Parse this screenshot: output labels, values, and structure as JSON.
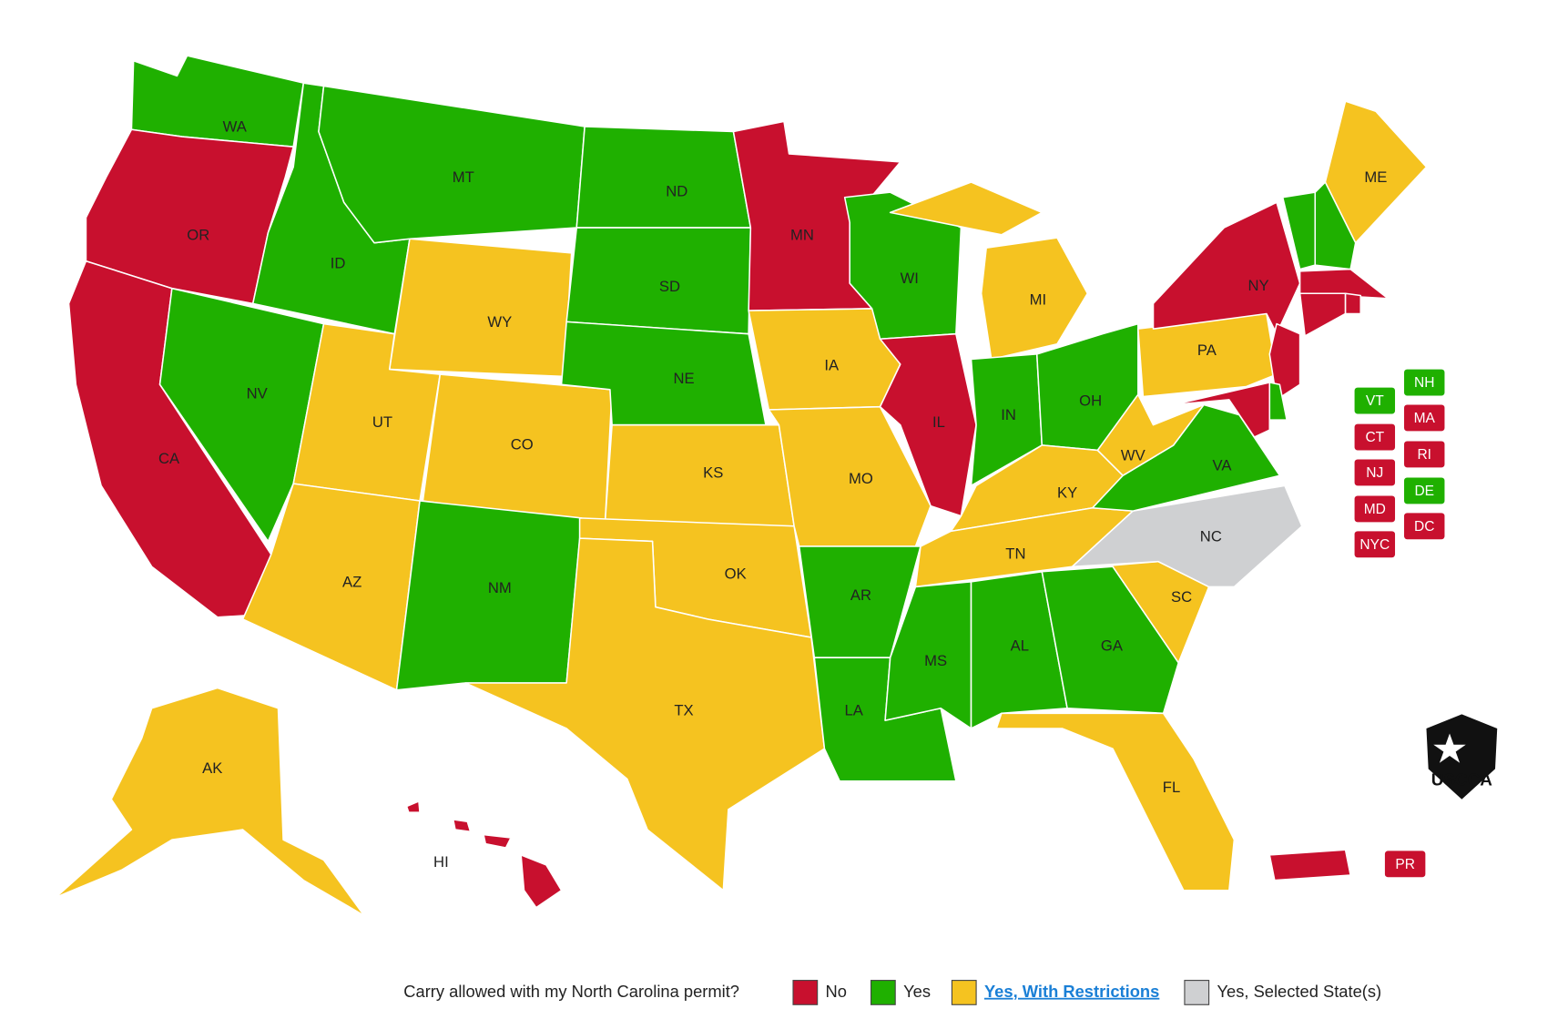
{
  "map": {
    "states": [
      {
        "abbr": "WA",
        "status": "Yes"
      },
      {
        "abbr": "OR",
        "status": "No"
      },
      {
        "abbr": "CA",
        "status": "No"
      },
      {
        "abbr": "ID",
        "status": "Yes"
      },
      {
        "abbr": "NV",
        "status": "Yes"
      },
      {
        "abbr": "MT",
        "status": "Yes"
      },
      {
        "abbr": "WY",
        "status": "Yes, With Restrictions"
      },
      {
        "abbr": "UT",
        "status": "Yes, With Restrictions"
      },
      {
        "abbr": "CO",
        "status": "Yes, With Restrictions"
      },
      {
        "abbr": "AZ",
        "status": "Yes, With Restrictions"
      },
      {
        "abbr": "NM",
        "status": "Yes"
      },
      {
        "abbr": "ND",
        "status": "Yes"
      },
      {
        "abbr": "SD",
        "status": "Yes"
      },
      {
        "abbr": "NE",
        "status": "Yes"
      },
      {
        "abbr": "KS",
        "status": "Yes, With Restrictions"
      },
      {
        "abbr": "OK",
        "status": "Yes, With Restrictions"
      },
      {
        "abbr": "TX",
        "status": "Yes, With Restrictions"
      },
      {
        "abbr": "MN",
        "status": "No"
      },
      {
        "abbr": "IA",
        "status": "Yes, With Restrictions"
      },
      {
        "abbr": "MO",
        "status": "Yes, With Restrictions"
      },
      {
        "abbr": "AR",
        "status": "Yes"
      },
      {
        "abbr": "LA",
        "status": "Yes"
      },
      {
        "abbr": "WI",
        "status": "Yes"
      },
      {
        "abbr": "IL",
        "status": "No"
      },
      {
        "abbr": "MI",
        "status": "Yes, With Restrictions"
      },
      {
        "abbr": "IN",
        "status": "Yes"
      },
      {
        "abbr": "OH",
        "status": "Yes"
      },
      {
        "abbr": "KY",
        "status": "Yes, With Restrictions"
      },
      {
        "abbr": "TN",
        "status": "Yes, With Restrictions"
      },
      {
        "abbr": "MS",
        "status": "Yes"
      },
      {
        "abbr": "AL",
        "status": "Yes"
      },
      {
        "abbr": "GA",
        "status": "Yes"
      },
      {
        "abbr": "FL",
        "status": "Yes, With Restrictions"
      },
      {
        "abbr": "SC",
        "status": "Yes, With Restrictions"
      },
      {
        "abbr": "NC",
        "status": "Yes, Selected State(s)"
      },
      {
        "abbr": "VA",
        "status": "Yes"
      },
      {
        "abbr": "WV",
        "status": "Yes, With Restrictions"
      },
      {
        "abbr": "PA",
        "status": "Yes, With Restrictions"
      },
      {
        "abbr": "NY",
        "status": "No"
      },
      {
        "abbr": "ME",
        "status": "Yes, With Restrictions"
      },
      {
        "abbr": "AK",
        "status": "Yes, With Restrictions"
      },
      {
        "abbr": "HI",
        "status": "No"
      }
    ],
    "badges": [
      {
        "abbr": "VT",
        "status": "Yes"
      },
      {
        "abbr": "NH",
        "status": "Yes"
      },
      {
        "abbr": "MA",
        "status": "No"
      },
      {
        "abbr": "CT",
        "status": "No"
      },
      {
        "abbr": "RI",
        "status": "No"
      },
      {
        "abbr": "NJ",
        "status": "No"
      },
      {
        "abbr": "DE",
        "status": "Yes"
      },
      {
        "abbr": "MD",
        "status": "No"
      },
      {
        "abbr": "DC",
        "status": "No"
      },
      {
        "abbr": "NYC",
        "status": "No"
      },
      {
        "abbr": "PR",
        "status": "No"
      }
    ]
  },
  "legend": {
    "question": "Carry allowed with my North Carolina permit?",
    "items": [
      {
        "label": "No",
        "color": "#c8102e"
      },
      {
        "label": "Yes",
        "color": "#1fb000"
      },
      {
        "label": "Yes, With Restrictions",
        "color": "#f5c320",
        "link": true
      },
      {
        "label": "Yes, Selected State(s)",
        "color": "#cfd0d2"
      }
    ]
  },
  "logo": {
    "text": "USCCA"
  }
}
